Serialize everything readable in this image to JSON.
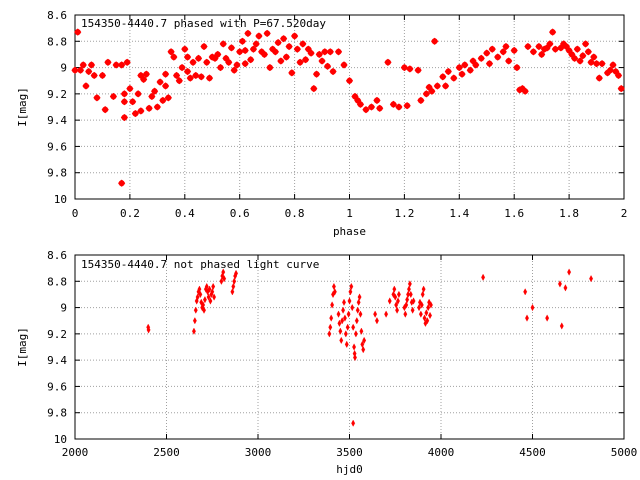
{
  "chart_data": [
    {
      "type": "scatter",
      "title": "154350-4440.7 phased with P=67.520day",
      "xlabel": "phase",
      "ylabel": "I[mag]",
      "xlim": [
        0,
        2
      ],
      "ylim": [
        10,
        8.6
      ],
      "y_inverted": true,
      "grid": true,
      "marker_color": "#ff0000",
      "x_tick_labels": [
        "0",
        "0.2",
        "0.4",
        "0.6",
        "0.8",
        "1",
        "1.2",
        "1.4",
        "1.6",
        "1.8",
        "2"
      ],
      "x_ticks": [
        0,
        0.2,
        0.4,
        0.6,
        0.8,
        1.0,
        1.2,
        1.4,
        1.6,
        1.8,
        2.0
      ],
      "y_tick_labels": [
        "8.6",
        "8.8",
        "9",
        "9.2",
        "9.4",
        "9.6",
        "9.8",
        "10"
      ],
      "y_ticks": [
        8.6,
        8.8,
        9.0,
        9.2,
        9.4,
        9.6,
        9.8,
        10.0
      ],
      "points": [
        [
          0.0,
          9.02
        ],
        [
          0.01,
          8.73
        ],
        [
          0.02,
          9.02
        ],
        [
          0.03,
          8.98
        ],
        [
          0.04,
          9.14
        ],
        [
          0.05,
          9.03
        ],
        [
          0.06,
          8.98
        ],
        [
          0.07,
          9.06
        ],
        [
          0.08,
          9.23
        ],
        [
          0.1,
          9.06
        ],
        [
          0.11,
          9.32
        ],
        [
          0.12,
          8.96
        ],
        [
          0.14,
          9.22
        ],
        [
          0.15,
          8.98
        ],
        [
          0.17,
          9.88
        ],
        [
          0.17,
          8.98
        ],
        [
          0.18,
          9.2
        ],
        [
          0.18,
          9.26
        ],
        [
          0.18,
          9.38
        ],
        [
          0.19,
          8.96
        ],
        [
          0.2,
          9.16
        ],
        [
          0.21,
          9.26
        ],
        [
          0.22,
          9.35
        ],
        [
          0.23,
          9.2
        ],
        [
          0.24,
          9.33
        ],
        [
          0.24,
          9.06
        ],
        [
          0.25,
          9.09
        ],
        [
          0.26,
          9.05
        ],
        [
          0.27,
          9.31
        ],
        [
          0.28,
          9.22
        ],
        [
          0.29,
          9.18
        ],
        [
          0.3,
          9.3
        ],
        [
          0.31,
          9.11
        ],
        [
          0.32,
          9.25
        ],
        [
          0.33,
          9.14
        ],
        [
          0.33,
          9.05
        ],
        [
          0.34,
          9.23
        ],
        [
          0.35,
          8.88
        ],
        [
          0.36,
          8.92
        ],
        [
          0.37,
          9.06
        ],
        [
          0.38,
          9.1
        ],
        [
          0.39,
          9.0
        ],
        [
          0.4,
          8.86
        ],
        [
          0.41,
          9.03
        ],
        [
          0.41,
          8.92
        ],
        [
          0.42,
          9.08
        ],
        [
          0.43,
          8.96
        ],
        [
          0.44,
          9.06
        ],
        [
          0.45,
          8.93
        ],
        [
          0.46,
          9.07
        ],
        [
          0.47,
          8.84
        ],
        [
          0.48,
          8.96
        ],
        [
          0.49,
          9.08
        ],
        [
          0.5,
          8.92
        ],
        [
          0.51,
          8.93
        ],
        [
          0.52,
          8.9
        ],
        [
          0.53,
          9.0
        ],
        [
          0.54,
          8.82
        ],
        [
          0.55,
          8.93
        ],
        [
          0.56,
          8.96
        ],
        [
          0.57,
          8.85
        ],
        [
          0.58,
          9.02
        ],
        [
          0.59,
          8.98
        ],
        [
          0.6,
          8.88
        ],
        [
          0.61,
          8.8
        ],
        [
          0.62,
          8.87
        ],
        [
          0.62,
          8.97
        ],
        [
          0.63,
          8.74
        ],
        [
          0.64,
          8.94
        ],
        [
          0.65,
          8.86
        ],
        [
          0.66,
          8.82
        ],
        [
          0.67,
          8.76
        ],
        [
          0.68,
          8.88
        ],
        [
          0.69,
          8.9
        ],
        [
          0.7,
          8.74
        ],
        [
          0.71,
          9.0
        ],
        [
          0.72,
          8.86
        ],
        [
          0.73,
          8.88
        ],
        [
          0.74,
          8.81
        ],
        [
          0.75,
          8.95
        ],
        [
          0.76,
          8.78
        ],
        [
          0.77,
          8.92
        ],
        [
          0.78,
          8.84
        ],
        [
          0.79,
          9.04
        ],
        [
          0.8,
          8.76
        ],
        [
          0.81,
          8.86
        ],
        [
          0.82,
          8.96
        ],
        [
          0.83,
          8.82
        ],
        [
          0.84,
          8.94
        ],
        [
          0.85,
          8.86
        ],
        [
          0.86,
          8.89
        ],
        [
          0.87,
          9.16
        ],
        [
          0.88,
          9.05
        ],
        [
          0.89,
          8.9
        ],
        [
          0.9,
          8.95
        ],
        [
          0.91,
          8.88
        ],
        [
          0.92,
          8.99
        ],
        [
          0.93,
          8.88
        ],
        [
          0.94,
          9.03
        ],
        [
          0.96,
          8.88
        ],
        [
          0.98,
          8.98
        ],
        [
          1.0,
          9.1
        ],
        [
          1.02,
          9.22
        ],
        [
          1.03,
          9.25
        ],
        [
          1.04,
          9.28
        ],
        [
          1.06,
          9.32
        ],
        [
          1.08,
          9.3
        ],
        [
          1.1,
          9.25
        ],
        [
          1.11,
          9.31
        ],
        [
          1.14,
          8.96
        ],
        [
          1.16,
          9.28
        ],
        [
          1.18,
          9.3
        ],
        [
          1.2,
          9.0
        ],
        [
          1.21,
          9.29
        ],
        [
          1.22,
          9.01
        ],
        [
          1.25,
          9.02
        ],
        [
          1.26,
          9.25
        ],
        [
          1.28,
          9.2
        ],
        [
          1.29,
          9.15
        ],
        [
          1.3,
          9.18
        ],
        [
          1.31,
          8.8
        ],
        [
          1.32,
          9.14
        ],
        [
          1.34,
          9.07
        ],
        [
          1.35,
          9.14
        ],
        [
          1.36,
          9.03
        ],
        [
          1.38,
          9.08
        ],
        [
          1.4,
          9.0
        ],
        [
          1.41,
          9.05
        ],
        [
          1.42,
          8.98
        ],
        [
          1.44,
          9.02
        ],
        [
          1.45,
          8.95
        ],
        [
          1.46,
          8.98
        ],
        [
          1.48,
          8.93
        ],
        [
          1.5,
          8.89
        ],
        [
          1.51,
          8.97
        ],
        [
          1.52,
          8.86
        ],
        [
          1.54,
          8.92
        ],
        [
          1.56,
          8.88
        ],
        [
          1.57,
          8.84
        ],
        [
          1.58,
          8.95
        ],
        [
          1.6,
          8.87
        ],
        [
          1.61,
          9.0
        ],
        [
          1.62,
          9.17
        ],
        [
          1.63,
          9.16
        ],
        [
          1.64,
          9.18
        ],
        [
          1.65,
          8.84
        ],
        [
          1.67,
          8.88
        ],
        [
          1.69,
          8.84
        ],
        [
          1.7,
          8.9
        ],
        [
          1.71,
          8.86
        ],
        [
          1.72,
          8.85
        ],
        [
          1.73,
          8.82
        ],
        [
          1.74,
          8.73
        ],
        [
          1.75,
          8.86
        ],
        [
          1.77,
          8.85
        ],
        [
          1.78,
          8.82
        ],
        [
          1.79,
          8.84
        ],
        [
          1.8,
          8.87
        ],
        [
          1.81,
          8.9
        ],
        [
          1.82,
          8.93
        ],
        [
          1.83,
          8.86
        ],
        [
          1.84,
          8.95
        ],
        [
          1.85,
          8.91
        ],
        [
          1.86,
          8.82
        ],
        [
          1.87,
          8.88
        ],
        [
          1.88,
          8.96
        ],
        [
          1.89,
          8.92
        ],
        [
          1.9,
          8.97
        ],
        [
          1.91,
          9.08
        ],
        [
          1.92,
          8.97
        ],
        [
          1.94,
          9.04
        ],
        [
          1.95,
          9.02
        ],
        [
          1.96,
          8.98
        ],
        [
          1.97,
          9.03
        ],
        [
          1.98,
          9.06
        ],
        [
          1.99,
          9.16
        ]
      ]
    },
    {
      "type": "scatter",
      "title": "154350-4440.7 not phased light curve",
      "xlabel": "hjd0",
      "ylabel": "I[mag]",
      "xlim": [
        2000,
        5000
      ],
      "ylim": [
        10,
        8.6
      ],
      "y_inverted": true,
      "grid": true,
      "marker_color": "#ff0000",
      "x_tick_labels": [
        "2000",
        "2500",
        "3000",
        "3500",
        "4000",
        "4500",
        "5000"
      ],
      "x_ticks": [
        2000,
        2500,
        3000,
        3500,
        4000,
        4500,
        5000
      ],
      "y_tick_labels": [
        "8.6",
        "8.8",
        "9",
        "9.2",
        "9.4",
        "9.6",
        "9.8",
        "10"
      ],
      "y_ticks": [
        8.6,
        8.8,
        9.0,
        9.2,
        9.4,
        9.6,
        9.8,
        10.0
      ],
      "points": [
        [
          2400,
          9.15
        ],
        [
          2402,
          9.17
        ],
        [
          2650,
          9.18
        ],
        [
          2655,
          9.1
        ],
        [
          2660,
          9.02
        ],
        [
          2665,
          8.95
        ],
        [
          2670,
          8.92
        ],
        [
          2675,
          8.88
        ],
        [
          2680,
          8.86
        ],
        [
          2685,
          8.9
        ],
        [
          2690,
          8.96
        ],
        [
          2695,
          9.0
        ],
        [
          2700,
          8.98
        ],
        [
          2705,
          9.02
        ],
        [
          2710,
          8.94
        ],
        [
          2715,
          8.86
        ],
        [
          2720,
          8.84
        ],
        [
          2725,
          8.88
        ],
        [
          2730,
          8.92
        ],
        [
          2735,
          8.86
        ],
        [
          2740,
          8.95
        ],
        [
          2745,
          8.9
        ],
        [
          2750,
          8.88
        ],
        [
          2755,
          8.84
        ],
        [
          2760,
          8.92
        ],
        [
          2800,
          8.8
        ],
        [
          2805,
          8.76
        ],
        [
          2810,
          8.73
        ],
        [
          2815,
          8.78
        ],
        [
          2860,
          8.88
        ],
        [
          2865,
          8.84
        ],
        [
          2870,
          8.8
        ],
        [
          2875,
          8.76
        ],
        [
          2880,
          8.74
        ],
        [
          3390,
          9.2
        ],
        [
          3395,
          9.15
        ],
        [
          3400,
          9.08
        ],
        [
          3405,
          8.98
        ],
        [
          3410,
          8.9
        ],
        [
          3415,
          8.84
        ],
        [
          3420,
          8.88
        ],
        [
          3440,
          9.05
        ],
        [
          3445,
          9.12
        ],
        [
          3450,
          9.18
        ],
        [
          3455,
          9.25
        ],
        [
          3460,
          9.1
        ],
        [
          3465,
          9.02
        ],
        [
          3470,
          8.96
        ],
        [
          3475,
          9.08
        ],
        [
          3480,
          9.2
        ],
        [
          3485,
          9.28
        ],
        [
          3490,
          9.15
        ],
        [
          3495,
          9.05
        ],
        [
          3500,
          8.95
        ],
        [
          3505,
          8.88
        ],
        [
          3510,
          8.84
        ],
        [
          3515,
          9.0
        ],
        [
          3520,
          9.15
        ],
        [
          3525,
          9.3
        ],
        [
          3528,
          9.35
        ],
        [
          3530,
          9.38
        ],
        [
          3520,
          9.88
        ],
        [
          3535,
          9.2
        ],
        [
          3540,
          9.1
        ],
        [
          3545,
          9.02
        ],
        [
          3550,
          8.96
        ],
        [
          3555,
          8.92
        ],
        [
          3560,
          9.05
        ],
        [
          3565,
          9.18
        ],
        [
          3570,
          9.28
        ],
        [
          3575,
          9.32
        ],
        [
          3580,
          9.25
        ],
        [
          3640,
          9.05
        ],
        [
          3650,
          9.1
        ],
        [
          3700,
          9.05
        ],
        [
          3720,
          8.95
        ],
        [
          3740,
          8.9
        ],
        [
          3745,
          8.86
        ],
        [
          3750,
          8.92
        ],
        [
          3755,
          8.98
        ],
        [
          3760,
          9.02
        ],
        [
          3765,
          8.95
        ],
        [
          3770,
          8.9
        ],
        [
          3800,
          9.0
        ],
        [
          3805,
          9.05
        ],
        [
          3810,
          8.98
        ],
        [
          3815,
          8.94
        ],
        [
          3820,
          8.9
        ],
        [
          3825,
          8.86
        ],
        [
          3830,
          8.82
        ],
        [
          3835,
          8.9
        ],
        [
          3840,
          8.96
        ],
        [
          3845,
          9.02
        ],
        [
          3850,
          8.95
        ],
        [
          3880,
          9.0
        ],
        [
          3885,
          8.96
        ],
        [
          3890,
          9.05
        ],
        [
          3895,
          8.98
        ],
        [
          3900,
          8.9
        ],
        [
          3905,
          8.86
        ],
        [
          3910,
          9.08
        ],
        [
          3915,
          9.12
        ],
        [
          3920,
          9.04
        ],
        [
          3925,
          9.1
        ],
        [
          3930,
          9.0
        ],
        [
          3935,
          8.96
        ],
        [
          3940,
          9.06
        ],
        [
          3945,
          8.98
        ],
        [
          4230,
          8.77
        ],
        [
          4460,
          8.88
        ],
        [
          4470,
          9.08
        ],
        [
          4500,
          9.0
        ],
        [
          4580,
          9.08
        ],
        [
          4650,
          8.82
        ],
        [
          4660,
          9.14
        ],
        [
          4680,
          8.85
        ],
        [
          4700,
          8.73
        ],
        [
          4820,
          8.78
        ]
      ]
    }
  ]
}
